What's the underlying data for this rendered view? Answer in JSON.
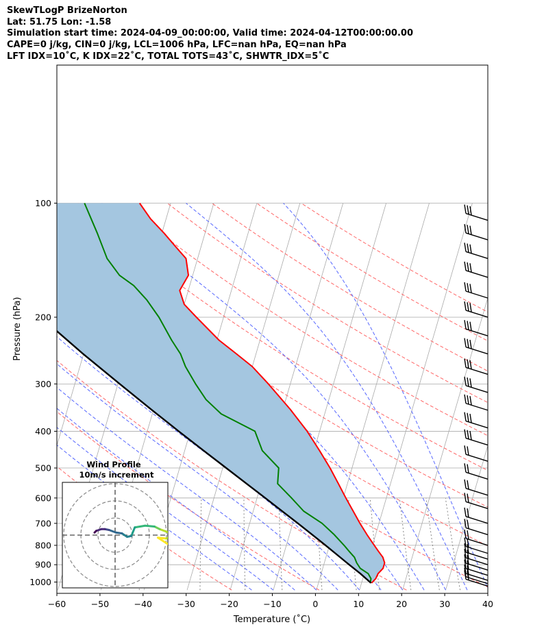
{
  "header": {
    "line1": "SkewTLogP BrizeNorton",
    "line2": "Lat: 51.75   Lon: -1.58",
    "line3": "Simulation start time: 2024-04-09_00:00:00, Valid time: 2024-04-12T00:00:00.00",
    "line4": "CAPE=0 j/kg, CIN=0 j/kg, LCL=1006 hPa, LFC=nan hPa, EQ=nan hPa",
    "line5": "LFT IDX=10˚C, K IDX=22˚C, TOTAL TOTS=43˚C, SHWTR_IDX=5˚C"
  },
  "chart_data": {
    "type": "line",
    "title": "SkewTLogP BrizeNorton",
    "xlabel": "Temperature (˚C)",
    "ylabel": "Pressure (hPa)",
    "xlim": [
      -60,
      40
    ],
    "ylim": [
      1050,
      100
    ],
    "y_scale": "log",
    "grid": true,
    "x_ticks": [
      "−60",
      "−50",
      "−40",
      "−30",
      "−20",
      "−10",
      "0",
      "10",
      "20",
      "30",
      "40"
    ],
    "x_tick_values": [
      -60,
      -50,
      -40,
      -30,
      -20,
      -10,
      0,
      10,
      20,
      30,
      40
    ],
    "y_ticks": [
      "1000",
      "900",
      "800",
      "700",
      "600",
      "500",
      "400",
      "300",
      "200",
      "100"
    ],
    "y_tick_values": [
      1000,
      900,
      800,
      700,
      600,
      500,
      400,
      300,
      200,
      100
    ],
    "colors": {
      "temperature": "#ff0000",
      "dewpoint": "#008000",
      "parcel": "#000000",
      "cape_fill": "#a4c6e0",
      "dry_adiabat": "#ff6666",
      "moist_adiabat": "#5566ff",
      "mixing_ratio": "#7a7a7a",
      "isotherm": "#a9a9a9"
    },
    "series": [
      {
        "key": "temperature",
        "pressure": [
          1006,
          980,
          950,
          920,
          890,
          860,
          830,
          800,
          750,
          700,
          650,
          600,
          550,
          500,
          450,
          400,
          350,
          300,
          270,
          250,
          230,
          200,
          185,
          170,
          155,
          140,
          130,
          120,
          110,
          100
        ],
        "values": [
          12.3,
          13.0,
          13.2,
          14.0,
          14.0,
          13.2,
          11.8,
          10.4,
          8.0,
          5.6,
          3.2,
          0.6,
          -2.1,
          -5.1,
          -8.7,
          -12.9,
          -18.3,
          -25.1,
          -30.0,
          -34.5,
          -39.5,
          -46.3,
          -50.0,
          -52.0,
          -51.0,
          -52.7,
          -56.0,
          -59.5,
          -63.6,
          -67.2
        ]
      },
      {
        "key": "dewpoint",
        "pressure": [
          1006,
          980,
          950,
          920,
          890,
          860,
          830,
          800,
          750,
          700,
          650,
          600,
          550,
          500,
          450,
          400,
          360,
          330,
          300,
          270,
          250,
          230,
          200,
          180,
          165,
          155,
          140,
          120,
          100
        ],
        "values": [
          12.0,
          11.9,
          10.9,
          8.7,
          7.5,
          6.6,
          5.0,
          3.4,
          0.4,
          -3.2,
          -8.3,
          -12.0,
          -16.2,
          -17.0,
          -22.0,
          -25.0,
          -34.0,
          -38.5,
          -42.0,
          -45.5,
          -47.5,
          -50.5,
          -55.0,
          -59.0,
          -63.0,
          -67.0,
          -71.0,
          -75.0,
          -80.0
        ]
      },
      {
        "key": "parcel",
        "pressure": [
          1006,
          950,
          900,
          850,
          800,
          750,
          700,
          650,
          600,
          550,
          500,
          450,
          400,
          350,
          300,
          250,
          200,
          150,
          100
        ],
        "values": [
          12.2,
          9.1,
          5.9,
          2.6,
          -0.9,
          -4.7,
          -8.8,
          -13.3,
          -18.1,
          -23.4,
          -29.2,
          -35.6,
          -42.7,
          -50.6,
          -59.6,
          -70.1,
          -82.4,
          -97.6,
          -118.1
        ]
      }
    ],
    "wind_barb_pressures": [
      1025,
      1010,
      990,
      960,
      930,
      900,
      870,
      840,
      800,
      750,
      700,
      640,
      590,
      535,
      480,
      435,
      392,
      352,
      316,
      283,
      250,
      224,
      200,
      178,
      157,
      140,
      125,
      111
    ],
    "inset": {
      "title": "Wind Profile",
      "subtitle": "10m/s increment",
      "rings": [
        1,
        2,
        3
      ],
      "hodograph_u": [
        6.4,
        5.0,
        6.0,
        6.8,
        5.2,
        4.6,
        3.5,
        2.3,
        1.9,
        1.4,
        0.8,
        0.1,
        -0.7,
        -1.2,
        -1.6,
        -2.2,
        -2.4
      ],
      "hodograph_v": [
        -1.2,
        -0.3,
        -0.4,
        0.1,
        0.7,
        1.0,
        1.1,
        0.9,
        -0.1,
        -0.2,
        0.2,
        0.3,
        0.6,
        0.7,
        0.7,
        0.5,
        0.3
      ],
      "colors": [
        "#fde725",
        "#b5de2b",
        "#6ece58",
        "#35b779",
        "#1f9e89",
        "#26828e",
        "#31688e",
        "#3e4989",
        "#482878",
        "#440154"
      ]
    }
  }
}
